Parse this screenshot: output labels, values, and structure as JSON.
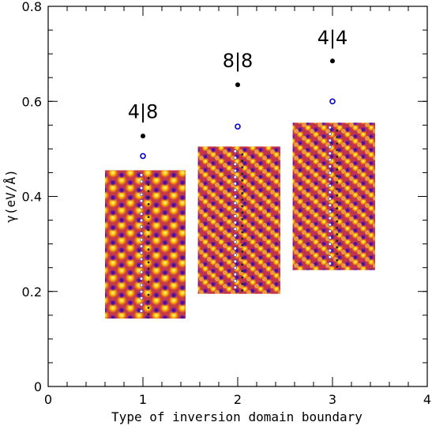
{
  "chart_data": {
    "type": "scatter",
    "xlabel": "Type of inversion domain boundary",
    "ylabel": "γ(eV/Å)",
    "xlim": [
      0,
      4
    ],
    "ylim": [
      0,
      0.8
    ],
    "x_ticks": [
      0,
      1,
      2,
      3,
      4
    ],
    "y_ticks": [
      0,
      0.2,
      0.4,
      0.6,
      0.8
    ],
    "x_tick_labels": [
      "0",
      "1",
      "2",
      "3",
      "4"
    ],
    "y_tick_labels": [
      "0",
      "0.2",
      "0.4",
      "0.6",
      "0.8"
    ],
    "grid": false,
    "series": [
      {
        "marker": "filled-circle",
        "color": "#000000",
        "points": [
          {
            "x": 1,
            "y": 0.527
          },
          {
            "x": 2,
            "y": 0.635
          },
          {
            "x": 3,
            "y": 0.685
          }
        ]
      },
      {
        "marker": "open-circle",
        "color": "#0000cc",
        "points": [
          {
            "x": 1,
            "y": 0.485
          },
          {
            "x": 2,
            "y": 0.547
          },
          {
            "x": 3,
            "y": 0.6
          }
        ]
      }
    ],
    "annotations": [
      {
        "text": "4|8",
        "x": 1,
        "y": 0.565
      },
      {
        "text": "8|8",
        "x": 2,
        "y": 0.672
      },
      {
        "text": "4|4",
        "x": 3,
        "y": 0.72
      }
    ],
    "insets": [
      {
        "boundary": "4|8",
        "x_range": [
          0.6,
          1.45
        ],
        "y_range": [
          0.143,
          0.455
        ],
        "pattern": "triangular"
      },
      {
        "boundary": "8|8",
        "x_range": [
          1.58,
          2.45
        ],
        "y_range": [
          0.195,
          0.505
        ],
        "pattern": "hexagonal"
      },
      {
        "boundary": "4|4",
        "x_range": [
          2.58,
          3.45
        ],
        "y_range": [
          0.245,
          0.555
        ],
        "pattern": "hexagonal"
      }
    ]
  }
}
